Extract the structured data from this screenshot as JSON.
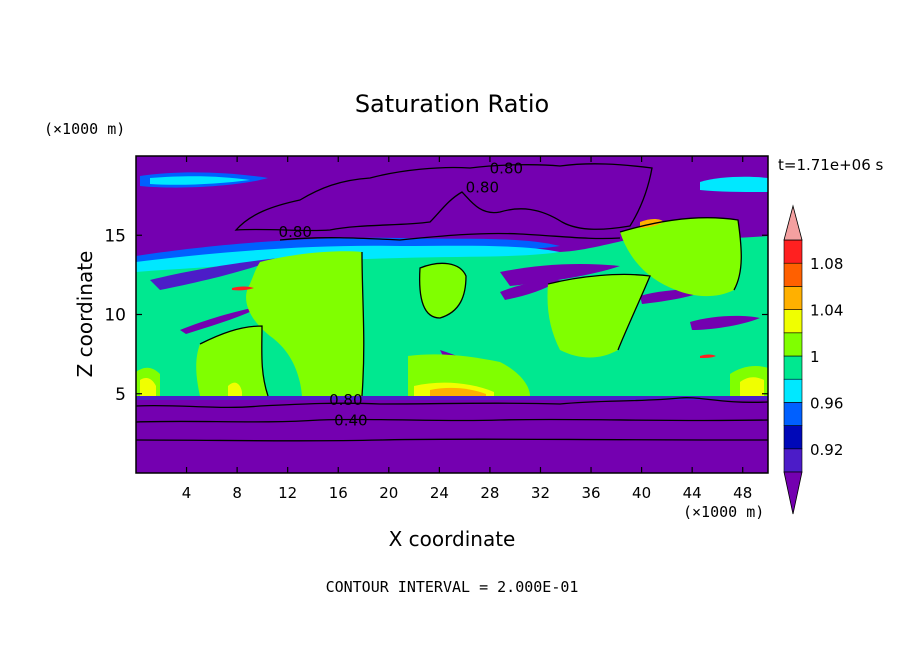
{
  "chart_data": {
    "type": "heatmap",
    "title": "Saturation Ratio",
    "xlabel": "X coordinate",
    "ylabel": "Z coordinate",
    "x_unit": "(×1000 m)",
    "y_unit": "(×1000 m)",
    "time_label": "t=1.71e+06 s",
    "footer": "CONTOUR INTERVAL = 2.000E-01",
    "xlim": [
      0,
      50
    ],
    "ylim": [
      0,
      20
    ],
    "x_ticks": [
      4,
      8,
      12,
      16,
      20,
      24,
      28,
      32,
      36,
      40,
      44,
      48
    ],
    "y_ticks": [
      5,
      10,
      15
    ],
    "colorbar": {
      "min": 0.9,
      "step": 0.02,
      "labels": [
        "0.92",
        "0.96",
        "1",
        "1.04",
        "1.08"
      ],
      "label_values": [
        0.92,
        0.96,
        1.0,
        1.04,
        1.08
      ],
      "colors": [
        "#7400b0",
        "#4c1cc8",
        "#0008b8",
        "#0060ff",
        "#00e8ff",
        "#00e890",
        "#80ff00",
        "#f0ff00",
        "#ffb000",
        "#ff6000",
        "#ff2020",
        "#f4a0a0"
      ],
      "over_color": "#f4a0a0",
      "under_color": "#7400b0"
    },
    "contour_labels": [
      {
        "text": "0.80",
        "x": 29.3,
        "z": 19.2
      },
      {
        "text": "0.80",
        "x": 27.4,
        "z": 18.0
      },
      {
        "text": "0.80",
        "x": 12.6,
        "z": 15.2
      },
      {
        "text": "0.80",
        "x": 16.6,
        "z": 4.6
      },
      {
        "text": "0.40",
        "x": 17.0,
        "z": 3.3
      }
    ]
  }
}
